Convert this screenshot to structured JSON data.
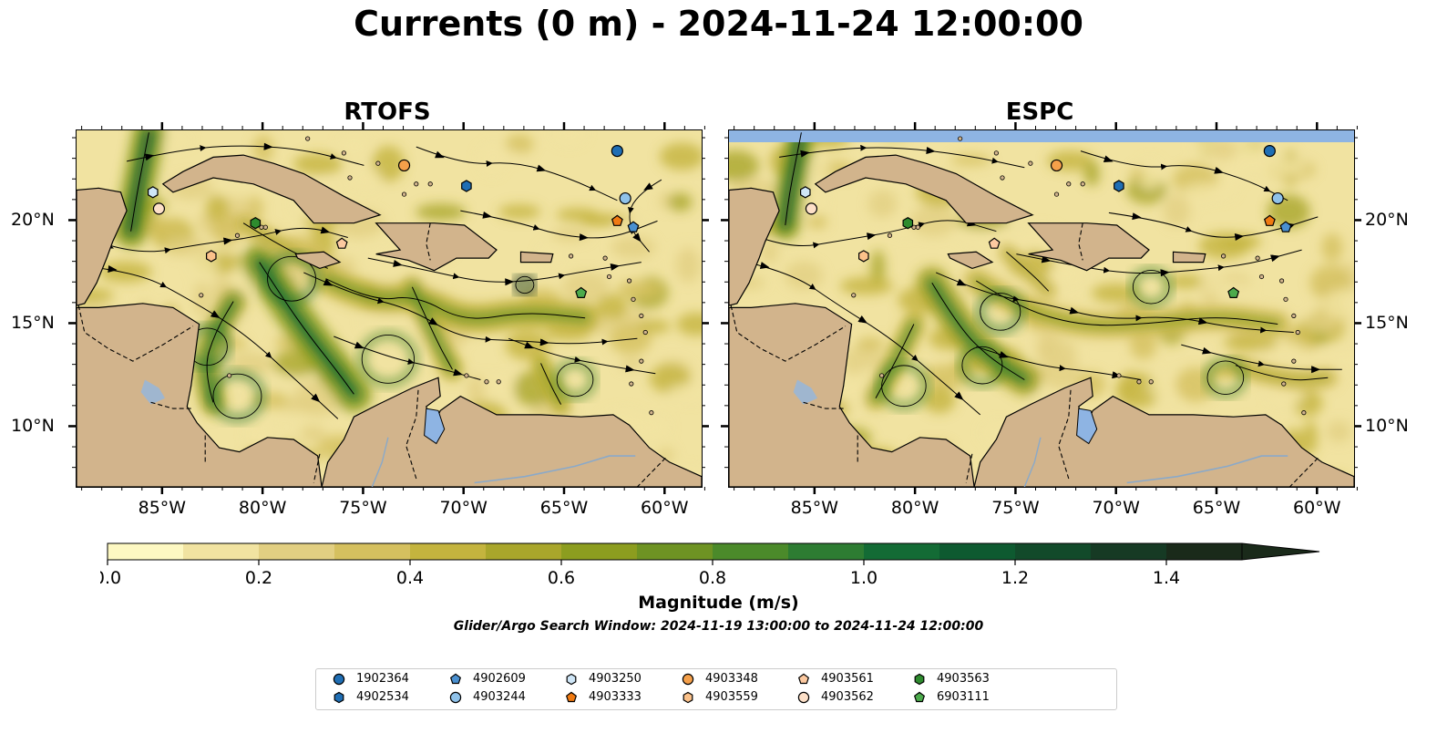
{
  "title": "Currents (0 m) - 2024-11-24 12:00:00",
  "panels": [
    {
      "id": "rtofs",
      "title": "RTOFS"
    },
    {
      "id": "espc",
      "title": "ESPC"
    }
  ],
  "axes": {
    "x_ticks": [
      "85°W",
      "80°W",
      "75°W",
      "70°W",
      "65°W",
      "60°W"
    ],
    "y_ticks": [
      "20°N",
      "15°N",
      "10°N"
    ]
  },
  "colors": {
    "land": "#d2b48c",
    "water_fill": "#8eb4e3",
    "colormap": [
      "#fdf8c2",
      "#f1e3a1",
      "#e2cf82",
      "#d5c05f",
      "#c4b43e",
      "#a9a62b",
      "#8c9d1f",
      "#6e9323",
      "#4b8a2a",
      "#2d7c32",
      "#136b35",
      "#0e5a30",
      "#124a2a",
      "#163a24",
      "#1a2a1a"
    ]
  },
  "colorbar": {
    "label": "Magnitude (m/s)",
    "ticks": [
      "0.0",
      "0.2",
      "0.4",
      "0.6",
      "0.8",
      "1.0",
      "1.2",
      "1.4"
    ],
    "range": [
      0.0,
      1.5
    ],
    "extend": "max"
  },
  "search_window": "Glider/Argo Search Window: 2024-11-19 13:00:00 to 2024-11-24 12:00:00",
  "legend": {
    "placement": "bottom-center",
    "items": [
      {
        "id": "1902364",
        "marker": "circle",
        "color": "#1f6eb4"
      },
      {
        "id": "4902534",
        "marker": "hexagon",
        "color": "#1f6eb4"
      },
      {
        "id": "4902609",
        "marker": "pentagon",
        "color": "#4a90d0"
      },
      {
        "id": "4903244",
        "marker": "circle",
        "color": "#8fc2ea"
      },
      {
        "id": "4903250",
        "marker": "hexagon",
        "color": "#cfe6f7"
      },
      {
        "id": "4903333",
        "marker": "pentagon",
        "color": "#f07a12"
      },
      {
        "id": "4903348",
        "marker": "circle",
        "color": "#f5a04a"
      },
      {
        "id": "4903559",
        "marker": "hexagon",
        "color": "#fbc18a"
      },
      {
        "id": "4903561",
        "marker": "pentagon",
        "color": "#fcc9a0"
      },
      {
        "id": "4903562",
        "marker": "circle",
        "color": "#fde0c8"
      },
      {
        "id": "4903563",
        "marker": "hexagon",
        "color": "#2e8b2e"
      },
      {
        "id": "6903111",
        "marker": "pentagon",
        "color": "#4cab4c"
      }
    ]
  },
  "floats": [
    {
      "id": "1902364",
      "lon": -62.4,
      "lat": 23.4
    },
    {
      "id": "4902534",
      "lon": -69.9,
      "lat": 21.7
    },
    {
      "id": "4902609",
      "lon": -61.6,
      "lat": 19.7
    },
    {
      "id": "4903244",
      "lon": -62.0,
      "lat": 21.1
    },
    {
      "id": "4903250",
      "lon": -85.5,
      "lat": 21.4
    },
    {
      "id": "4903333",
      "lon": -62.4,
      "lat": 20.0
    },
    {
      "id": "4903348",
      "lon": -73.0,
      "lat": 22.7
    },
    {
      "id": "4903559",
      "lon": -82.6,
      "lat": 18.3
    },
    {
      "id": "4903561",
      "lon": -76.1,
      "lat": 18.9
    },
    {
      "id": "4903562",
      "lon": -85.2,
      "lat": 20.6
    },
    {
      "id": "4903563",
      "lon": -80.4,
      "lat": 19.9
    },
    {
      "id": "6903111",
      "lon": -64.2,
      "lat": 16.5
    }
  ]
}
